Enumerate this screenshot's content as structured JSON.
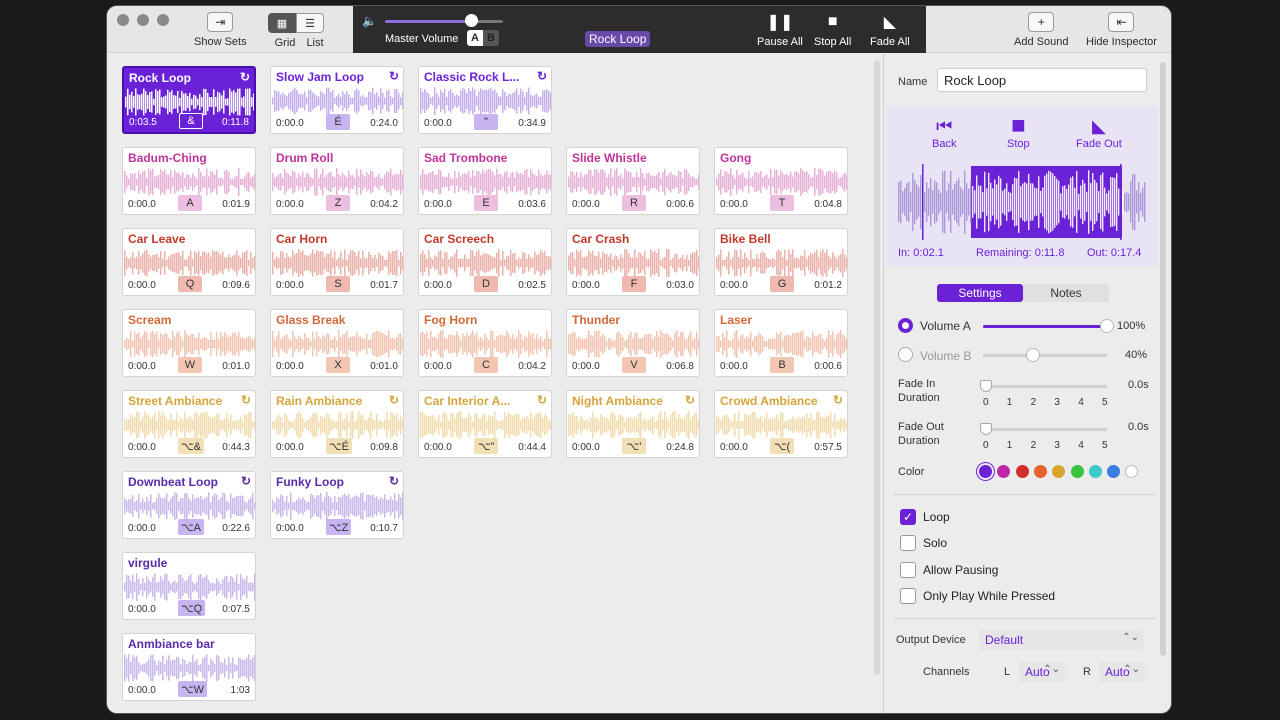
{
  "toolbar": {
    "show_sets": "Show Sets",
    "grid": "Grid",
    "list": "List",
    "master_volume": "Master Volume",
    "vol_a": "A",
    "vol_b": "B",
    "now_playing": "Rock Loop",
    "pause_all": "Pause All",
    "stop_all": "Stop All",
    "fade_all": "Fade All",
    "add_sound": "Add Sound",
    "hide_inspector": "Hide Inspector"
  },
  "colors": {
    "purple": "#6b21d6",
    "violet": "#5a2aa8",
    "magenta": "#c0339a",
    "red": "#c0392b",
    "orange": "#d0683a",
    "gold": "#d4a53a"
  },
  "sounds": [
    {
      "name": "Rock Loop",
      "start": "0:03.5",
      "end": "0:11.8",
      "key": "&",
      "loop": true,
      "color": "purple",
      "selected": true
    },
    {
      "name": "Slow Jam Loop",
      "start": "0:00.0",
      "end": "0:24.0",
      "key": "É",
      "loop": true,
      "color": "purple"
    },
    {
      "name": "Classic Rock L...",
      "start": "0:00.0",
      "end": "0:34.9",
      "key": "\"",
      "loop": true,
      "color": "purple"
    },
    {
      "name": "Badum-Ching",
      "start": "0:00.0",
      "end": "0:01.9",
      "key": "A",
      "color": "magenta"
    },
    {
      "name": "Drum Roll",
      "start": "0:00.0",
      "end": "0:04.2",
      "key": "Z",
      "color": "magenta"
    },
    {
      "name": "Sad Trombone",
      "start": "0:00.0",
      "end": "0:03.6",
      "key": "E",
      "color": "magenta"
    },
    {
      "name": "Slide Whistle",
      "start": "0:00.0",
      "end": "0:00.6",
      "key": "R",
      "color": "magenta"
    },
    {
      "name": "Gong",
      "start": "0:00.0",
      "end": "0:04.8",
      "key": "T",
      "color": "magenta"
    },
    {
      "name": "Car Leave",
      "start": "0:00.0",
      "end": "0:09.6",
      "key": "Q",
      "color": "red"
    },
    {
      "name": "Car Horn",
      "start": "0:00.0",
      "end": "0:01.7",
      "key": "S",
      "color": "red"
    },
    {
      "name": "Car Screech",
      "start": "0:00.0",
      "end": "0:02.5",
      "key": "D",
      "color": "red"
    },
    {
      "name": "Car Crash",
      "start": "0:00.0",
      "end": "0:03.0",
      "key": "F",
      "color": "red"
    },
    {
      "name": "Bike Bell",
      "start": "0:00.0",
      "end": "0:01.2",
      "key": "G",
      "color": "red"
    },
    {
      "name": "Scream",
      "start": "0:00.0",
      "end": "0:01.0",
      "key": "W",
      "color": "orange"
    },
    {
      "name": "Glass Break",
      "start": "0:00.0",
      "end": "0:01.0",
      "key": "X",
      "color": "orange"
    },
    {
      "name": "Fog Horn",
      "start": "0:00.0",
      "end": "0:04.2",
      "key": "C",
      "color": "orange"
    },
    {
      "name": "Thunder",
      "start": "0:00.0",
      "end": "0:06.8",
      "key": "V",
      "color": "orange"
    },
    {
      "name": "Laser",
      "start": "0:00.0",
      "end": "0:00.6",
      "key": "B",
      "color": "orange"
    },
    {
      "name": "Street Ambiance",
      "start": "0:00.0",
      "end": "0:44.3",
      "key": "⌥&",
      "loop": true,
      "color": "gold"
    },
    {
      "name": "Rain Ambiance",
      "start": "0:00.0",
      "end": "0:09.8",
      "key": "⌥É",
      "loop": true,
      "color": "gold"
    },
    {
      "name": "Car Interior A...",
      "start": "0:00.0",
      "end": "0:44.4",
      "key": "⌥\"",
      "loop": true,
      "color": "gold"
    },
    {
      "name": "Night Ambiance",
      "start": "0:00.0",
      "end": "0:24.8",
      "key": "⌥'",
      "loop": true,
      "color": "gold"
    },
    {
      "name": "Crowd Ambiance",
      "start": "0:00.0",
      "end": "0:57.5",
      "key": "⌥(",
      "loop": true,
      "color": "gold"
    },
    {
      "name": "Downbeat Loop",
      "start": "0:00.0",
      "end": "0:22.6",
      "key": "⌥A",
      "loop": true,
      "color": "violet"
    },
    {
      "name": "Funky Loop",
      "start": "0:00.0",
      "end": "0:10.7",
      "key": "⌥Z",
      "loop": true,
      "color": "violet"
    },
    {
      "name": "virgule",
      "start": "0:00.0",
      "end": "0:07.5",
      "key": "⌥Q",
      "color": "violet"
    },
    {
      "name": "Anmbiance bar",
      "start": "0:00.0",
      "end": "1:03",
      "key": "⌥W",
      "color": "violet"
    }
  ],
  "inspector": {
    "name_label": "Name",
    "name_value": "Rock Loop",
    "back": "Back",
    "stop": "Stop",
    "fade_out": "Fade Out",
    "in_time": "In: 0:02.1",
    "remaining": "Remaining: 0:11.8",
    "out_time": "Out: 0:17.4",
    "tab_settings": "Settings",
    "tab_notes": "Notes",
    "volume_a_label": "Volume A",
    "volume_a_value": "100%",
    "volume_a_level": 1.0,
    "volume_b_label": "Volume B",
    "volume_b_value": "40%",
    "volume_b_level": 0.4,
    "fade_in_label1": "Fade In",
    "fade_in_label2": "Duration",
    "fade_in_value": "0.0s",
    "fade_out_label1": "Fade Out",
    "fade_out_label2": "Duration",
    "fade_out_value": "0.0s",
    "ticks": [
      "0",
      "1",
      "2",
      "3",
      "4",
      "5"
    ],
    "color_label": "Color",
    "swatches": [
      "#6b21d6",
      "#c026a8",
      "#d32f2f",
      "#e8622e",
      "#d9a52e",
      "#3cc23c",
      "#3cc9c9",
      "#3a7fe0",
      "#ffffff"
    ],
    "loop_label": "Loop",
    "solo_label": "Solo",
    "allow_pausing_label": "Allow Pausing",
    "only_play_label": "Only Play While Pressed",
    "output_device_label": "Output Device",
    "output_device_value": "Default",
    "channels_label": "Channels",
    "left_label": "L",
    "left_value": "Auto",
    "right_label": "R",
    "right_value": "Auto"
  }
}
